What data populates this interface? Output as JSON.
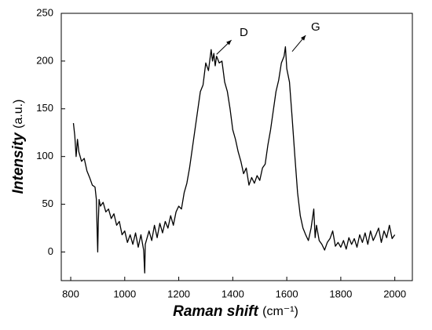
{
  "chart_data": {
    "type": "line",
    "y_label": "Intensity",
    "y_label_unit": "(a.u.)",
    "x_label": "Raman shift",
    "x_label_unit": "(cm⁻¹)",
    "annotations": [
      "D",
      "G"
    ],
    "xlim": [
      765,
      2065
    ],
    "xticks": [
      800,
      1000,
      1200,
      1400,
      1600,
      1800,
      2000
    ],
    "ylim": [
      -30,
      250
    ],
    "yticks": [
      0,
      50,
      100,
      150,
      200,
      250
    ],
    "x": [
      810,
      815,
      820,
      825,
      830,
      840,
      850,
      860,
      870,
      880,
      890,
      895,
      898,
      900,
      902,
      905,
      910,
      920,
      930,
      940,
      950,
      960,
      970,
      980,
      990,
      1000,
      1010,
      1020,
      1030,
      1040,
      1050,
      1060,
      1070,
      1074,
      1076,
      1080,
      1090,
      1100,
      1110,
      1120,
      1130,
      1140,
      1150,
      1160,
      1170,
      1180,
      1190,
      1200,
      1210,
      1220,
      1230,
      1240,
      1250,
      1260,
      1270,
      1280,
      1290,
      1300,
      1310,
      1320,
      1325,
      1330,
      1335,
      1340,
      1350,
      1360,
      1370,
      1380,
      1390,
      1400,
      1410,
      1420,
      1430,
      1440,
      1450,
      1460,
      1470,
      1480,
      1490,
      1500,
      1510,
      1520,
      1530,
      1540,
      1550,
      1560,
      1570,
      1580,
      1590,
      1595,
      1600,
      1610,
      1620,
      1630,
      1640,
      1650,
      1660,
      1670,
      1680,
      1690,
      1700,
      1705,
      1710,
      1720,
      1730,
      1740,
      1750,
      1760,
      1770,
      1780,
      1790,
      1800,
      1810,
      1820,
      1830,
      1840,
      1850,
      1860,
      1870,
      1880,
      1890,
      1900,
      1910,
      1920,
      1930,
      1940,
      1950,
      1960,
      1970,
      1980,
      1990,
      2000
    ],
    "series": [
      {
        "color": "#000000",
        "values": [
          135,
          122,
          100,
          118,
          105,
          95,
          98,
          85,
          78,
          70,
          68,
          55,
          20,
          0,
          30,
          55,
          48,
          52,
          42,
          45,
          35,
          40,
          28,
          32,
          18,
          22,
          10,
          18,
          8,
          20,
          5,
          18,
          2,
          -22,
          8,
          12,
          22,
          12,
          28,
          15,
          30,
          20,
          32,
          25,
          38,
          28,
          42,
          48,
          45,
          62,
          72,
          88,
          108,
          128,
          148,
          168,
          175,
          198,
          190,
          212,
          200,
          208,
          195,
          205,
          198,
          200,
          178,
          168,
          150,
          128,
          118,
          105,
          95,
          82,
          88,
          70,
          78,
          72,
          80,
          75,
          88,
          92,
          112,
          128,
          148,
          168,
          180,
          198,
          205,
          215,
          192,
          178,
          140,
          100,
          62,
          38,
          25,
          18,
          12,
          25,
          45,
          15,
          28,
          12,
          8,
          2,
          10,
          14,
          22,
          6,
          10,
          5,
          12,
          3,
          15,
          8,
          14,
          5,
          18,
          10,
          20,
          8,
          22,
          12,
          18,
          25,
          10,
          22,
          15,
          28,
          14,
          18
        ]
      }
    ]
  }
}
